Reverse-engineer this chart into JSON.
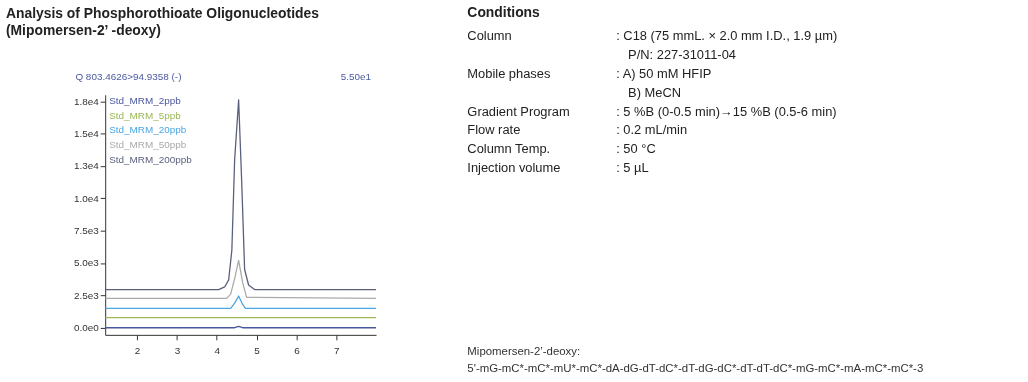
{
  "chart_data": [
    {
      "type": "line",
      "title": "Analysis of Phosphorothioate Oligonucleotides",
      "subtitle": "(Mipomersen-2’ -deoxy)",
      "annotations": [
        "Q 803.4626>94.9358 (-)",
        "5.50e1"
      ],
      "legend": "top left",
      "xlim": [
        1.2,
        8.0
      ],
      "xticks": [
        2,
        3,
        4,
        5,
        6,
        7
      ],
      "ylim": [
        -550,
        18000
      ],
      "yticks": [
        {
          "value": 0,
          "label": "0.0e0"
        },
        {
          "value": 2500,
          "label": "2.5e3"
        },
        {
          "value": 5000,
          "label": "5.0e3"
        },
        {
          "value": 7500,
          "label": "7.5e3"
        },
        {
          "value": 10000,
          "label": "1.0e4"
        },
        {
          "value": 12500,
          "label": "1.3e4"
        },
        {
          "value": 15000,
          "label": "1.5e4"
        },
        {
          "value": 17500,
          "label": "1.8e4"
        }
      ],
      "series": [
        {
          "name": "Std_MRM_2ppb",
          "color": "#4a58a0",
          "x": [
            1.2,
            4.45,
            4.55,
            4.65,
            8.0
          ],
          "values": [
            0,
            0,
            100,
            0,
            0
          ]
        },
        {
          "name": "Std_MRM_5ppb",
          "color": "#9ab854",
          "x": [
            1.2,
            8.0
          ],
          "values": [
            780,
            780
          ]
        },
        {
          "name": "Std_MRM_20ppb",
          "color": "#4aa6e4",
          "x": [
            1.2,
            4.35,
            4.45,
            4.55,
            4.65,
            4.72,
            8.0
          ],
          "values": [
            1500,
            1500,
            1900,
            2450,
            1800,
            1500,
            1500
          ]
        },
        {
          "name": "Std_MRM_50ppb",
          "color": "#aaaaaa",
          "x": [
            1.2,
            4.25,
            4.35,
            4.45,
            4.55,
            4.65,
            4.75,
            8.0
          ],
          "values": [
            2270,
            2270,
            2600,
            3800,
            5200,
            3500,
            2350,
            2270
          ]
        },
        {
          "name": "Std_MRM_200ppb",
          "color": "#5a5f7c",
          "x": [
            1.2,
            4.05,
            4.2,
            4.3,
            4.38,
            4.45,
            4.55,
            4.63,
            4.7,
            4.8,
            4.95,
            8.0
          ],
          "values": [
            2950,
            2950,
            3150,
            3700,
            6000,
            13000,
            17600,
            11000,
            4500,
            3300,
            2950,
            2950
          ]
        }
      ]
    },
    {
      "type": "other",
      "title": "Conditions",
      "annotations": [
        "Column",
        ": C18  (75 mmL. × 2.0 mm I.D., 1.9 µm)",
        "P/N: 227-31011-04",
        "Mobile phases",
        ": A) 50 mM HFIP",
        "B) MeCN",
        "Gradient Program",
        ": 5 %B (0-0.5 min)→15 %B (0.5-6 min)",
        "Flow rate",
        ": 0.2 mL/min",
        "Column Temp.",
        ": 50 °C",
        "Injection volume",
        ": 5 µL",
        "Mipomersen-2’-deoxy:",
        "5'-mG-mC*-mC*-mU*-mC*-dA-dG-dT-dC*-dT-dG-dC*-dT-dT-dC*-mG-mC*-mA-mC*-mC*-3"
      ]
    }
  ]
}
